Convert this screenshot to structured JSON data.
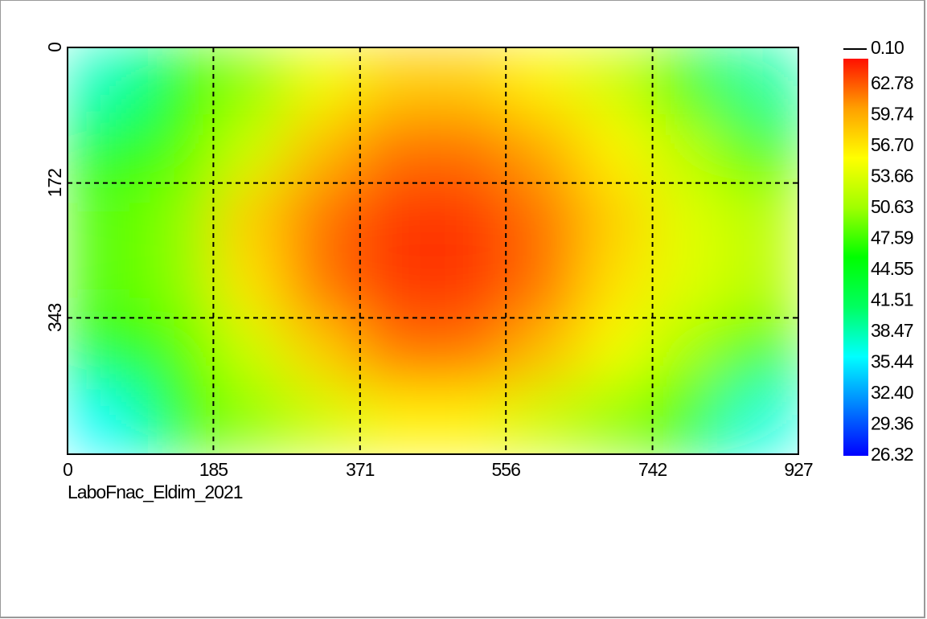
{
  "chart_data": {
    "type": "heatmap",
    "xlabel": "LaboFnac_Eldim_2021",
    "xlim": [
      0,
      927
    ],
    "xticks": [
      0,
      185,
      371,
      556,
      742,
      927
    ],
    "ylim": [
      0,
      516
    ],
    "yticks": [
      0,
      172,
      343
    ],
    "y_inverted": true,
    "grid": true,
    "zlim": [
      26.32,
      65.3
    ],
    "zticks": [
      62.78,
      59.74,
      {
        "value": 56.7,
        "label": "56.70"
      },
      53.66,
      50.63,
      47.59,
      44.55,
      41.51,
      38.47,
      35.44,
      {
        "value": 32.4,
        "label": "32.40"
      },
      29.36,
      26.32
    ],
    "colorbar_marker": {
      "value": 0.1,
      "label": "0.10"
    },
    "colorscale": [
      "#0000ff",
      "#0080ff",
      "#00ffff",
      "#00ff60",
      "#00ff00",
      "#a0ff00",
      "#ffff00",
      "#ffa000",
      "#ff1000"
    ],
    "z": [
      [
        38,
        46,
        50,
        55,
        58,
        58,
        56,
        53,
        47,
        39
      ],
      [
        44,
        48,
        53,
        59,
        62,
        62,
        60,
        56,
        52,
        47
      ],
      [
        48,
        50,
        58,
        62,
        64,
        64,
        62,
        58,
        54,
        52
      ],
      [
        48,
        50,
        57,
        62,
        64,
        64,
        62,
        57,
        54,
        52
      ],
      [
        44,
        48,
        53,
        58,
        62,
        62,
        59,
        55,
        51,
        47
      ],
      [
        36,
        45,
        50,
        53,
        56,
        56,
        53,
        50,
        46,
        37
      ]
    ]
  }
}
